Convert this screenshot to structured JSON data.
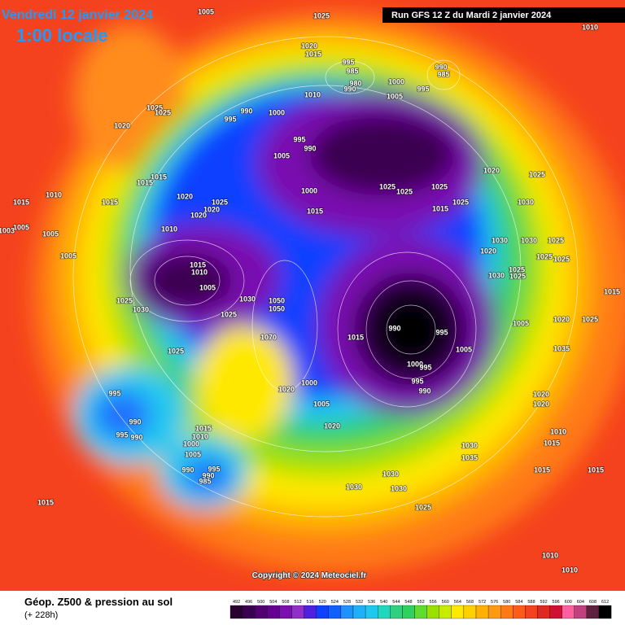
{
  "header": {
    "date": "Vendredi 12 janvier 2024",
    "time": "1:00 locale",
    "run": "Run GFS 12 Z du Mardi 2 janvier 2024"
  },
  "footer": {
    "title": "Géop. Z500 & pression au sol",
    "subtitle": "(+ 228h)",
    "copyright": "Copyright © 2024 Meteociel.fr"
  },
  "scale": [
    "492",
    "496",
    "500",
    "504",
    "508",
    "512",
    "516",
    "520",
    "524",
    "528",
    "532",
    "536",
    "540",
    "544",
    "548",
    "552",
    "556",
    "560",
    "564",
    "568",
    "572",
    "576",
    "580",
    "584",
    "588",
    "592",
    "596",
    "600",
    "604",
    "608",
    "612"
  ],
  "isobar_labels": [
    "1005",
    "1025",
    "1010",
    "1020",
    "1015",
    "995",
    "985",
    "980",
    "990",
    "990",
    "985",
    "1000",
    "995",
    "1010",
    "1005",
    "1025",
    "1025",
    "1020",
    "990",
    "995",
    "1000",
    "995",
    "990",
    "1005",
    "1020",
    "1025",
    "1015",
    "1015",
    "1000",
    "1025",
    "1025",
    "1025",
    "1025",
    "1015",
    "1030",
    "1010",
    "1015",
    "1015",
    "1020",
    "1025",
    "1020",
    "1020",
    "1015",
    "1005",
    "1003",
    "1005",
    "1010",
    "1030",
    "1030",
    "1025",
    "1020",
    "1025",
    "1025",
    "1025",
    "1005",
    "1015",
    "1010",
    "1030",
    "1025",
    "1005",
    "1015",
    "1025",
    "1030",
    "1050",
    "1050",
    "1025",
    "1030",
    "1005",
    "1020",
    "1025",
    "990",
    "995",
    "1015",
    "1005",
    "1070",
    "1025",
    "1000",
    "995",
    "1035",
    "1000",
    "995",
    "1020",
    "990",
    "995",
    "1005",
    "1020",
    "1020",
    "990",
    "995",
    "990",
    "1015",
    "1010",
    "1000",
    "1020",
    "1010",
    "1015",
    "1005",
    "1030",
    "1035",
    "995",
    "990",
    "990",
    "985",
    "1030",
    "1015",
    "1015",
    "1030",
    "1030",
    "1015",
    "1025",
    "1010",
    "1010"
  ]
}
